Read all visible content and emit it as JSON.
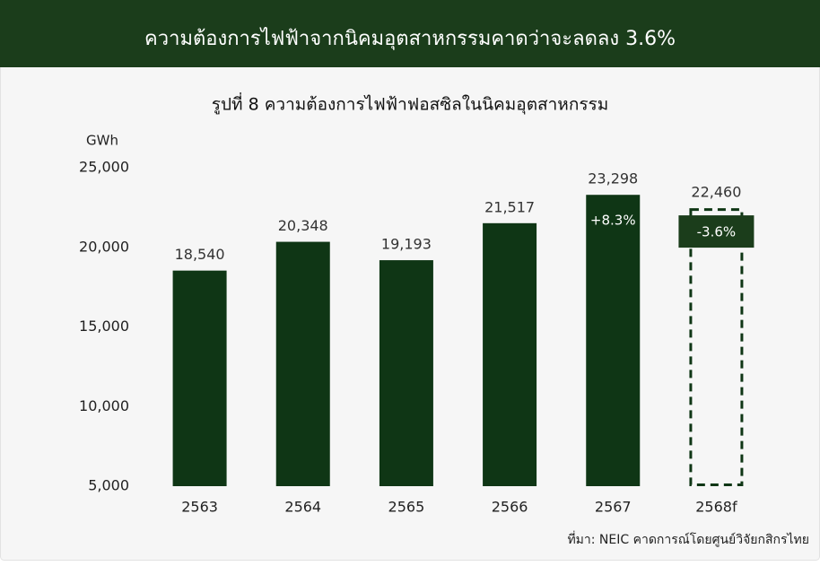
{
  "chart_data": {
    "type": "bar",
    "title": "ความต้องการไฟฟ้าจากนิคมอุตสาหกรรมคาดว่าจะลดลง 3.6%",
    "subtitle": "รูปที่ 8 ความต้องการไฟฟ้าฟอสซิลในนิคมอุตสาหกรรม",
    "y_label": "GWh",
    "categories": [
      "2563",
      "2564",
      "2565",
      "2566",
      "2567",
      "2568f"
    ],
    "values": [
      18540,
      20348,
      19193,
      21517,
      23298,
      22460
    ],
    "value_labels": [
      "18,540",
      "20,348",
      "19,193",
      "21,517",
      "23,298",
      "22,460"
    ],
    "forecast": [
      false,
      false,
      false,
      false,
      false,
      true
    ],
    "annotations": [
      "+8.3%",
      "-3.6%"
    ],
    "color": "#0f3615",
    "ylim": [
      5000,
      25000
    ],
    "yticks": [
      {
        "value": 5000,
        "label": "5,000"
      },
      {
        "value": 10000,
        "label": "10,000"
      },
      {
        "value": 15000,
        "label": "15,000"
      },
      {
        "value": 20000,
        "label": "20,000"
      },
      {
        "value": 25000,
        "label": "25,000"
      }
    ],
    "grid": false,
    "source": "ที่มา: NEIC คาดการณ์โดยศูนย์วิจัยกสิกรไทย"
  }
}
